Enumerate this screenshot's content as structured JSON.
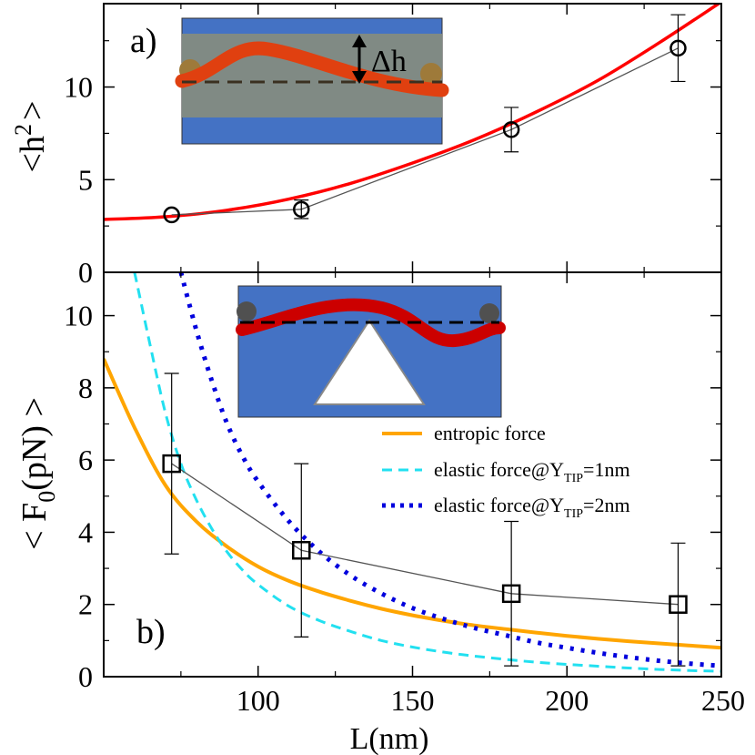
{
  "colors": {
    "fit_red": "#ff0000",
    "entropic_orange": "#ffa500",
    "elastic1_cyan": "#22e0f0",
    "elastic2_blue": "#0000dd",
    "data_black": "#000000",
    "inset_blue": "#4472c4",
    "inset_grey": "#808a84",
    "polymer_red_a": "#e04010",
    "polymer_red_b": "#cc0000",
    "bead_brown": "#9e7a3a",
    "bead_dark": "#505050"
  },
  "chart_data": [
    {
      "type": "line",
      "panel_label": "a)",
      "ylabel_base": "<h",
      "ylabel_sup": "2",
      "ylabel_end": ">",
      "xlim": [
        50,
        250
      ],
      "ylim": [
        0,
        14.5
      ],
      "yticks": [
        "0",
        "5",
        "10"
      ],
      "inset_label": "Δh",
      "series": [
        {
          "kind": "data",
          "marker": "circle",
          "x": [
            72,
            114,
            182,
            236
          ],
          "y": [
            3.1,
            3.4,
            7.7,
            12.1
          ],
          "err": [
            null,
            0.5,
            1.2,
            1.8
          ]
        },
        {
          "kind": "fit",
          "x": [
            50,
            70,
            90,
            110,
            130,
            150,
            170,
            190,
            210,
            230,
            250
          ],
          "y": [
            2.85,
            3.0,
            3.35,
            3.95,
            4.8,
            5.9,
            7.15,
            8.65,
            10.35,
            12.4,
            14.6
          ]
        }
      ]
    },
    {
      "type": "line",
      "panel_label": "b)",
      "ylabel_base": "< F",
      "ylabel_sub": "0",
      "ylabel_end": "(pN) >",
      "xlabel": "L(nm)",
      "xlim": [
        50,
        250
      ],
      "ylim": [
        0,
        11.2
      ],
      "xticks": [
        "100",
        "150",
        "200",
        "250"
      ],
      "yticks": [
        "0",
        "2",
        "4",
        "6",
        "8",
        "10"
      ],
      "legend_position": "center-right",
      "legend": [
        {
          "key": "entropic",
          "label": "entropic force",
          "style": "solid"
        },
        {
          "key": "elastic1",
          "label_pre": "elastic force@Y",
          "label_sub": "TIP",
          "label_post": "=1nm",
          "style": "dashed"
        },
        {
          "key": "elastic2",
          "label_pre": "elastic force@Y",
          "label_sub": "TIP",
          "label_post": "=2nm",
          "style": "dotted"
        }
      ],
      "series": [
        {
          "key": "data",
          "marker": "square",
          "x": [
            72,
            114,
            182,
            236
          ],
          "y": [
            5.9,
            3.5,
            2.3,
            2.0
          ],
          "err": [
            2.5,
            2.4,
            2.0,
            1.7
          ]
        },
        {
          "key": "entropic",
          "x": [
            50,
            60,
            70,
            80,
            90,
            100,
            110,
            120,
            130,
            140,
            150,
            160,
            170,
            180,
            190,
            200,
            210,
            220,
            230,
            240,
            250
          ],
          "y": [
            8.8,
            6.9,
            5.3,
            4.3,
            3.6,
            3.05,
            2.65,
            2.35,
            2.1,
            1.88,
            1.7,
            1.55,
            1.42,
            1.32,
            1.22,
            1.13,
            1.05,
            0.98,
            0.92,
            0.86,
            0.8
          ]
        },
        {
          "key": "elastic1",
          "x": [
            60,
            65,
            70,
            75,
            80,
            85,
            90,
            95,
            100,
            110,
            120,
            130,
            140,
            150,
            160,
            170,
            180,
            190,
            200,
            210,
            220,
            230,
            240,
            250
          ],
          "y": [
            11.2,
            9.2,
            7.3,
            5.9,
            4.9,
            4.1,
            3.45,
            2.95,
            2.55,
            1.95,
            1.55,
            1.25,
            1.0,
            0.82,
            0.68,
            0.57,
            0.48,
            0.4,
            0.34,
            0.29,
            0.24,
            0.2,
            0.17,
            0.15
          ]
        },
        {
          "key": "elastic2",
          "x": [
            75,
            80,
            85,
            90,
            95,
            100,
            110,
            120,
            130,
            140,
            150,
            160,
            170,
            180,
            190,
            200,
            210,
            220,
            230,
            240,
            250
          ],
          "y": [
            11.2,
            9.6,
            8.2,
            7.0,
            6.1,
            5.4,
            4.3,
            3.45,
            2.8,
            2.3,
            1.9,
            1.6,
            1.35,
            1.15,
            0.95,
            0.8,
            0.66,
            0.54,
            0.44,
            0.36,
            0.3
          ]
        }
      ]
    }
  ]
}
